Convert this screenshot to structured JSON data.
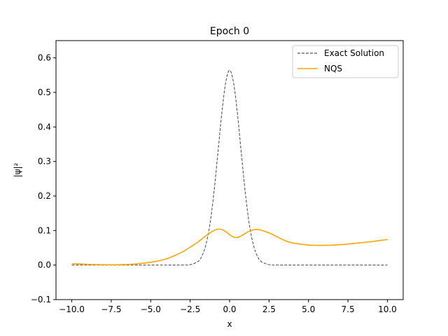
{
  "chart_data": {
    "type": "line",
    "title": "Epoch 0",
    "xlabel": "x",
    "ylabel": "|ψ|²",
    "xlim": [
      -11.0,
      11.0
    ],
    "ylim": [
      -0.1,
      0.65
    ],
    "xticks": [
      -10.0,
      -7.5,
      -5.0,
      -2.5,
      0.0,
      2.5,
      5.0,
      7.5,
      10.0
    ],
    "xtick_labels": [
      "−10.0",
      "−7.5",
      "−5.0",
      "−2.5",
      "0.0",
      "2.5",
      "5.0",
      "7.5",
      "10.0"
    ],
    "yticks": [
      -0.1,
      0.0,
      0.1,
      0.2,
      0.3,
      0.4,
      0.5,
      0.6
    ],
    "ytick_labels": [
      "−0.1",
      "0.0",
      "0.1",
      "0.2",
      "0.3",
      "0.4",
      "0.5",
      "0.6"
    ],
    "grid": false,
    "legend_position": "top-right",
    "series": [
      {
        "name": "Exact Solution",
        "color": "#555555",
        "style": "dashed",
        "x": [
          -10,
          -4,
          -3,
          -2.5,
          -2,
          -1.75,
          -1.5,
          -1.25,
          -1,
          -0.75,
          -0.5,
          -0.25,
          0,
          0.25,
          0.5,
          0.75,
          1,
          1.25,
          1.5,
          1.75,
          2,
          2.5,
          3,
          4,
          10
        ],
        "y": [
          0,
          0,
          0.0001,
          0.0011,
          0.0103,
          0.0265,
          0.0596,
          0.1175,
          0.2075,
          0.3203,
          0.4375,
          0.528,
          0.5642,
          0.528,
          0.4375,
          0.3203,
          0.2075,
          0.1175,
          0.0596,
          0.0265,
          0.0103,
          0.0011,
          0.0001,
          0,
          0
        ]
      },
      {
        "name": "NQS",
        "color": "#ffa500",
        "style": "solid",
        "x": [
          -10,
          -9,
          -8,
          -7,
          -6,
          -5,
          -4,
          -3,
          -2.5,
          -2,
          -1.5,
          -1,
          -0.75,
          -0.5,
          -0.25,
          0,
          0.25,
          0.5,
          0.75,
          1,
          1.25,
          1.5,
          1.75,
          2,
          2.5,
          3,
          3.5,
          4,
          5,
          6,
          7,
          8,
          9,
          10
        ],
        "y": [
          0.004,
          0.002,
          0.001,
          0.001,
          0.003,
          0.008,
          0.018,
          0.038,
          0.052,
          0.067,
          0.085,
          0.1,
          0.104,
          0.103,
          0.097,
          0.088,
          0.081,
          0.08,
          0.085,
          0.092,
          0.098,
          0.102,
          0.103,
          0.101,
          0.093,
          0.082,
          0.071,
          0.064,
          0.058,
          0.057,
          0.059,
          0.063,
          0.068,
          0.074
        ]
      }
    ]
  }
}
